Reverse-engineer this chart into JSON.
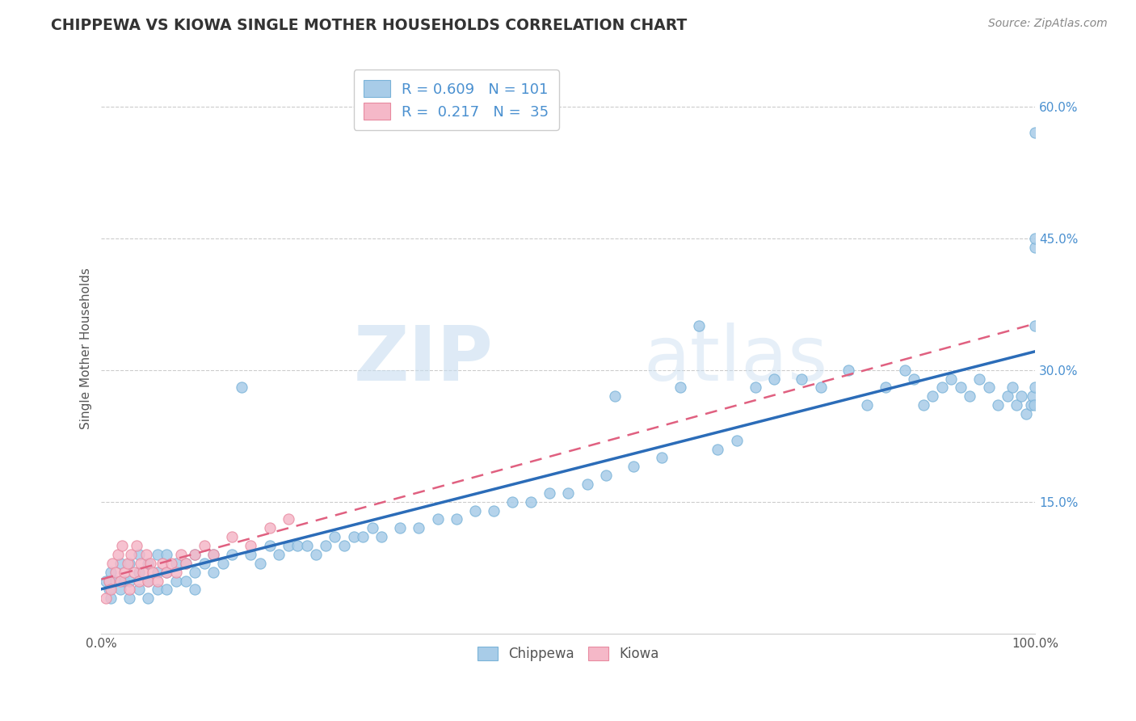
{
  "title": "CHIPPEWA VS KIOWA SINGLE MOTHER HOUSEHOLDS CORRELATION CHART",
  "source": "Source: ZipAtlas.com",
  "ylabel": "Single Mother Households",
  "xlim": [
    0,
    1
  ],
  "ylim": [
    0,
    0.65
  ],
  "yticks": [
    0.15,
    0.3,
    0.45,
    0.6
  ],
  "ytick_labels": [
    "15.0%",
    "30.0%",
    "45.0%",
    "60.0%"
  ],
  "xtick_labels": [
    "0.0%",
    "100.0%"
  ],
  "chippewa_color": "#a8cce8",
  "chippewa_edge_color": "#7ab3d8",
  "kiowa_color": "#f5b8c8",
  "kiowa_edge_color": "#e88aa0",
  "chippewa_line_color": "#2b6cb8",
  "kiowa_line_color": "#e06080",
  "R_chippewa": 0.609,
  "N_chippewa": 101,
  "R_kiowa": 0.217,
  "N_kiowa": 35,
  "watermark_zip": "ZIP",
  "watermark_atlas": "atlas",
  "background_color": "#ffffff",
  "grid_color": "#cccccc",
  "chippewa_x": [
    0.005,
    0.008,
    0.01,
    0.01,
    0.015,
    0.02,
    0.02,
    0.025,
    0.03,
    0.03,
    0.03,
    0.04,
    0.04,
    0.04,
    0.05,
    0.05,
    0.05,
    0.06,
    0.06,
    0.06,
    0.07,
    0.07,
    0.07,
    0.08,
    0.08,
    0.09,
    0.09,
    0.1,
    0.1,
    0.1,
    0.11,
    0.12,
    0.12,
    0.13,
    0.14,
    0.15,
    0.16,
    0.17,
    0.18,
    0.19,
    0.2,
    0.21,
    0.22,
    0.23,
    0.24,
    0.25,
    0.26,
    0.27,
    0.28,
    0.29,
    0.3,
    0.32,
    0.34,
    0.36,
    0.38,
    0.4,
    0.42,
    0.44,
    0.46,
    0.48,
    0.5,
    0.52,
    0.54,
    0.55,
    0.57,
    0.6,
    0.62,
    0.64,
    0.66,
    0.68,
    0.7,
    0.72,
    0.75,
    0.77,
    0.8,
    0.82,
    0.84,
    0.86,
    0.87,
    0.88,
    0.89,
    0.9,
    0.91,
    0.92,
    0.93,
    0.94,
    0.95,
    0.96,
    0.97,
    0.975,
    0.98,
    0.985,
    0.99,
    0.995,
    0.997,
    0.999,
    1.0,
    1.0,
    1.0,
    1.0,
    1.0
  ],
  "chippewa_y": [
    0.06,
    0.05,
    0.04,
    0.07,
    0.06,
    0.05,
    0.08,
    0.06,
    0.04,
    0.06,
    0.08,
    0.05,
    0.07,
    0.09,
    0.04,
    0.06,
    0.08,
    0.05,
    0.07,
    0.09,
    0.05,
    0.07,
    0.09,
    0.06,
    0.08,
    0.06,
    0.08,
    0.05,
    0.07,
    0.09,
    0.08,
    0.07,
    0.09,
    0.08,
    0.09,
    0.28,
    0.09,
    0.08,
    0.1,
    0.09,
    0.1,
    0.1,
    0.1,
    0.09,
    0.1,
    0.11,
    0.1,
    0.11,
    0.11,
    0.12,
    0.11,
    0.12,
    0.12,
    0.13,
    0.13,
    0.14,
    0.14,
    0.15,
    0.15,
    0.16,
    0.16,
    0.17,
    0.18,
    0.27,
    0.19,
    0.2,
    0.28,
    0.35,
    0.21,
    0.22,
    0.28,
    0.29,
    0.29,
    0.28,
    0.3,
    0.26,
    0.28,
    0.3,
    0.29,
    0.26,
    0.27,
    0.28,
    0.29,
    0.28,
    0.27,
    0.29,
    0.28,
    0.26,
    0.27,
    0.28,
    0.26,
    0.27,
    0.25,
    0.26,
    0.27,
    0.26,
    0.28,
    0.35,
    0.44,
    0.57,
    0.45
  ],
  "kiowa_x": [
    0.005,
    0.008,
    0.01,
    0.012,
    0.015,
    0.018,
    0.02,
    0.022,
    0.025,
    0.028,
    0.03,
    0.032,
    0.035,
    0.038,
    0.04,
    0.042,
    0.045,
    0.048,
    0.05,
    0.052,
    0.055,
    0.06,
    0.065,
    0.07,
    0.075,
    0.08,
    0.085,
    0.09,
    0.1,
    0.11,
    0.12,
    0.14,
    0.16,
    0.18,
    0.2
  ],
  "kiowa_y": [
    0.04,
    0.06,
    0.05,
    0.08,
    0.07,
    0.09,
    0.06,
    0.1,
    0.07,
    0.08,
    0.05,
    0.09,
    0.07,
    0.1,
    0.06,
    0.08,
    0.07,
    0.09,
    0.06,
    0.08,
    0.07,
    0.06,
    0.08,
    0.07,
    0.08,
    0.07,
    0.09,
    0.08,
    0.09,
    0.1,
    0.09,
    0.11,
    0.1,
    0.12,
    0.13
  ]
}
